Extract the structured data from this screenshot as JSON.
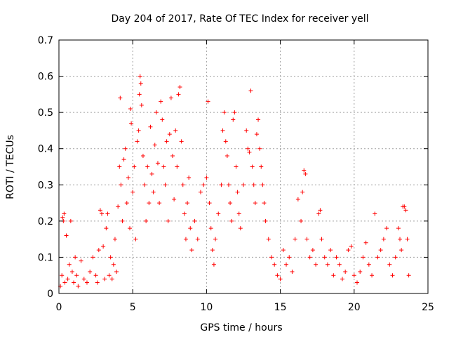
{
  "chart_data": {
    "type": "scatter",
    "title": "Day 204 of 2017, Rate Of TEC Index for receiver yell",
    "xlabel": "GPS time / hours",
    "ylabel": "ROTI / TECUs",
    "xlim": [
      0,
      25
    ],
    "ylim": [
      0,
      0.7
    ],
    "xticks": [
      0,
      5,
      10,
      15,
      20,
      25
    ],
    "yticks": [
      0,
      0.1,
      0.2,
      0.3,
      0.4,
      0.5,
      0.6,
      0.7
    ],
    "xtick_labels": [
      "0",
      "5",
      "10",
      "15",
      "20",
      "25"
    ],
    "ytick_labels": [
      "0",
      "0.1",
      "0.2",
      "0.3",
      "0.4",
      "0.5",
      "0.6",
      "0.7"
    ],
    "grid": true,
    "marker": "+",
    "marker_color": "#ff0000",
    "series": [
      {
        "points": [
          [
            0.1,
            0.02
          ],
          [
            0.2,
            0.05
          ],
          [
            0.25,
            0.21
          ],
          [
            0.3,
            0.2
          ],
          [
            0.35,
            0.22
          ],
          [
            0.4,
            0.03
          ],
          [
            0.5,
            0.16
          ],
          [
            0.6,
            0.04
          ],
          [
            0.7,
            0.08
          ],
          [
            0.8,
            0.2
          ],
          [
            0.9,
            0.06
          ],
          [
            1.0,
            0.03
          ],
          [
            1.1,
            0.1
          ],
          [
            1.2,
            0.05
          ],
          [
            1.3,
            0.02
          ],
          [
            1.5,
            0.09
          ],
          [
            1.7,
            0.04
          ],
          [
            1.9,
            0.03
          ],
          [
            2.1,
            0.06
          ],
          [
            2.3,
            0.1
          ],
          [
            2.5,
            0.05
          ],
          [
            2.6,
            0.03
          ],
          [
            2.7,
            0.12
          ],
          [
            2.8,
            0.23
          ],
          [
            2.9,
            0.22
          ],
          [
            3.0,
            0.13
          ],
          [
            3.1,
            0.04
          ],
          [
            3.2,
            0.18
          ],
          [
            3.3,
            0.22
          ],
          [
            3.4,
            0.05
          ],
          [
            3.5,
            0.1
          ],
          [
            3.6,
            0.04
          ],
          [
            3.7,
            0.08
          ],
          [
            3.8,
            0.15
          ],
          [
            3.9,
            0.06
          ],
          [
            4.0,
            0.24
          ],
          [
            4.1,
            0.35
          ],
          [
            4.15,
            0.54
          ],
          [
            4.2,
            0.3
          ],
          [
            4.3,
            0.2
          ],
          [
            4.4,
            0.37
          ],
          [
            4.5,
            0.4
          ],
          [
            4.6,
            0.25
          ],
          [
            4.7,
            0.32
          ],
          [
            4.8,
            0.18
          ],
          [
            4.85,
            0.51
          ],
          [
            4.9,
            0.47
          ],
          [
            5.0,
            0.28
          ],
          [
            5.1,
            0.35
          ],
          [
            5.2,
            0.15
          ],
          [
            5.3,
            0.42
          ],
          [
            5.4,
            0.45
          ],
          [
            5.45,
            0.55
          ],
          [
            5.5,
            0.6
          ],
          [
            5.55,
            0.58
          ],
          [
            5.6,
            0.52
          ],
          [
            5.7,
            0.38
          ],
          [
            5.8,
            0.3
          ],
          [
            5.9,
            0.2
          ],
          [
            6.0,
            0.35
          ],
          [
            6.1,
            0.25
          ],
          [
            6.2,
            0.46
          ],
          [
            6.3,
            0.33
          ],
          [
            6.4,
            0.28
          ],
          [
            6.5,
            0.41
          ],
          [
            6.6,
            0.5
          ],
          [
            6.7,
            0.36
          ],
          [
            6.8,
            0.25
          ],
          [
            6.9,
            0.53
          ],
          [
            7.0,
            0.48
          ],
          [
            7.1,
            0.35
          ],
          [
            7.2,
            0.3
          ],
          [
            7.3,
            0.42
          ],
          [
            7.4,
            0.2
          ],
          [
            7.5,
            0.44
          ],
          [
            7.6,
            0.54
          ],
          [
            7.7,
            0.38
          ],
          [
            7.8,
            0.26
          ],
          [
            7.9,
            0.45
          ],
          [
            8.0,
            0.35
          ],
          [
            8.1,
            0.55
          ],
          [
            8.2,
            0.57
          ],
          [
            8.3,
            0.42
          ],
          [
            8.4,
            0.3
          ],
          [
            8.5,
            0.22
          ],
          [
            8.6,
            0.15
          ],
          [
            8.7,
            0.25
          ],
          [
            8.8,
            0.32
          ],
          [
            8.9,
            0.18
          ],
          [
            9.0,
            0.12
          ],
          [
            9.2,
            0.2
          ],
          [
            9.4,
            0.15
          ],
          [
            9.6,
            0.28
          ],
          [
            9.8,
            0.3
          ],
          [
            10.0,
            0.32
          ],
          [
            10.1,
            0.53
          ],
          [
            10.2,
            0.25
          ],
          [
            10.3,
            0.18
          ],
          [
            10.4,
            0.12
          ],
          [
            10.5,
            0.08
          ],
          [
            10.6,
            0.15
          ],
          [
            10.8,
            0.22
          ],
          [
            11.0,
            0.3
          ],
          [
            11.1,
            0.45
          ],
          [
            11.2,
            0.5
          ],
          [
            11.3,
            0.42
          ],
          [
            11.4,
            0.38
          ],
          [
            11.5,
            0.3
          ],
          [
            11.6,
            0.25
          ],
          [
            11.7,
            0.2
          ],
          [
            11.8,
            0.48
          ],
          [
            11.9,
            0.5
          ],
          [
            12.0,
            0.35
          ],
          [
            12.1,
            0.28
          ],
          [
            12.2,
            0.22
          ],
          [
            12.3,
            0.18
          ],
          [
            12.5,
            0.3
          ],
          [
            12.7,
            0.45
          ],
          [
            12.8,
            0.4
          ],
          [
            12.9,
            0.39
          ],
          [
            13.0,
            0.56
          ],
          [
            13.1,
            0.35
          ],
          [
            13.2,
            0.3
          ],
          [
            13.3,
            0.25
          ],
          [
            13.4,
            0.44
          ],
          [
            13.5,
            0.48
          ],
          [
            13.6,
            0.4
          ],
          [
            13.7,
            0.35
          ],
          [
            13.8,
            0.3
          ],
          [
            13.9,
            0.25
          ],
          [
            14.0,
            0.2
          ],
          [
            14.2,
            0.15
          ],
          [
            14.4,
            0.1
          ],
          [
            14.6,
            0.08
          ],
          [
            14.8,
            0.05
          ],
          [
            15.0,
            0.04
          ],
          [
            15.2,
            0.12
          ],
          [
            15.4,
            0.08
          ],
          [
            15.6,
            0.1
          ],
          [
            15.8,
            0.06
          ],
          [
            16.0,
            0.15
          ],
          [
            16.2,
            0.26
          ],
          [
            16.4,
            0.2
          ],
          [
            16.5,
            0.28
          ],
          [
            16.6,
            0.34
          ],
          [
            16.7,
            0.33
          ],
          [
            16.8,
            0.15
          ],
          [
            17.0,
            0.1
          ],
          [
            17.2,
            0.12
          ],
          [
            17.4,
            0.08
          ],
          [
            17.6,
            0.22
          ],
          [
            17.7,
            0.23
          ],
          [
            17.8,
            0.15
          ],
          [
            18.0,
            0.1
          ],
          [
            18.2,
            0.08
          ],
          [
            18.4,
            0.12
          ],
          [
            18.6,
            0.05
          ],
          [
            18.8,
            0.1
          ],
          [
            19.0,
            0.08
          ],
          [
            19.2,
            0.04
          ],
          [
            19.4,
            0.06
          ],
          [
            19.6,
            0.12
          ],
          [
            19.8,
            0.13
          ],
          [
            20.0,
            0.05
          ],
          [
            20.2,
            0.03
          ],
          [
            20.4,
            0.06
          ],
          [
            20.6,
            0.1
          ],
          [
            20.8,
            0.14
          ],
          [
            21.0,
            0.08
          ],
          [
            21.2,
            0.05
          ],
          [
            21.4,
            0.22
          ],
          [
            21.6,
            0.1
          ],
          [
            21.8,
            0.12
          ],
          [
            22.0,
            0.15
          ],
          [
            22.2,
            0.18
          ],
          [
            22.4,
            0.08
          ],
          [
            22.6,
            0.05
          ],
          [
            22.8,
            0.1
          ],
          [
            23.0,
            0.18
          ],
          [
            23.1,
            0.15
          ],
          [
            23.2,
            0.12
          ],
          [
            23.3,
            0.24
          ],
          [
            23.4,
            0.24
          ],
          [
            23.5,
            0.23
          ],
          [
            23.6,
            0.15
          ],
          [
            23.7,
            0.05
          ]
        ]
      }
    ]
  }
}
